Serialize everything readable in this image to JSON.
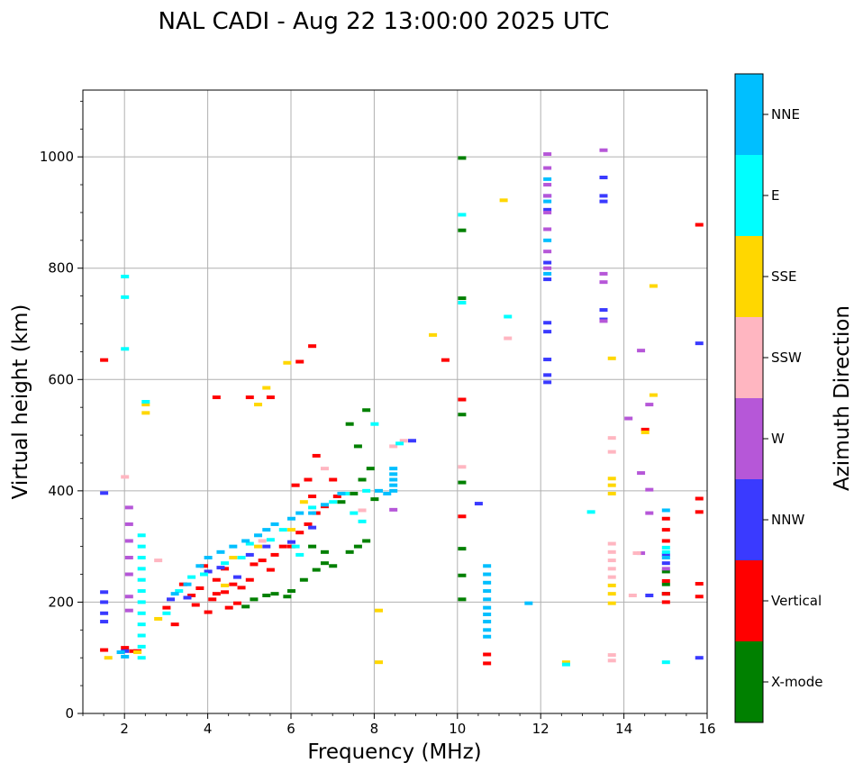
{
  "chart_data": {
    "type": "scatter",
    "title": "NAL CADI - Aug 22 13:00:00 2025 UTC",
    "xlabel": "Frequency (MHz)",
    "ylabel": "Virtual height (km)",
    "xlim": [
      1,
      16
    ],
    "ylim": [
      0,
      1120
    ],
    "xticks": [
      2,
      4,
      6,
      8,
      10,
      12,
      14,
      16
    ],
    "yticks": [
      0,
      200,
      400,
      600,
      800,
      1000
    ],
    "grid": true,
    "colorbar": {
      "label": "Azimuth Direction",
      "categories": [
        {
          "name": "X-mode",
          "color": "#008000"
        },
        {
          "name": "Vertical",
          "color": "#ff0000"
        },
        {
          "name": "NNW",
          "color": "#3a3aff"
        },
        {
          "name": "W",
          "color": "#b657d8"
        },
        {
          "name": "SSW",
          "color": "#ffb6c1"
        },
        {
          "name": "SSE",
          "color": "#ffd700"
        },
        {
          "name": "E",
          "color": "#00ffff"
        },
        {
          "name": "NNE",
          "color": "#00bfff"
        }
      ]
    },
    "series": [
      {
        "name": "X-mode",
        "points": [
          [
            4.9,
            192
          ],
          [
            5.1,
            205
          ],
          [
            5.4,
            212
          ],
          [
            5.6,
            215
          ],
          [
            5.9,
            210
          ],
          [
            6.0,
            220
          ],
          [
            6.3,
            240
          ],
          [
            6.6,
            258
          ],
          [
            6.8,
            270
          ],
          [
            7.0,
            265
          ],
          [
            7.4,
            290
          ],
          [
            7.6,
            300
          ],
          [
            7.8,
            310
          ],
          [
            7.2,
            380
          ],
          [
            7.5,
            395
          ],
          [
            7.7,
            420
          ],
          [
            7.9,
            440
          ],
          [
            7.6,
            480
          ],
          [
            7.4,
            520
          ],
          [
            7.8,
            545
          ],
          [
            8.0,
            385
          ],
          [
            10.1,
            205
          ],
          [
            10.1,
            248
          ],
          [
            10.1,
            296
          ],
          [
            10.1,
            415
          ],
          [
            10.1,
            537
          ],
          [
            10.1,
            746
          ],
          [
            10.1,
            868
          ],
          [
            10.1,
            998
          ],
          [
            15.0,
            215
          ],
          [
            15.0,
            232
          ],
          [
            15.0,
            255
          ],
          [
            6.8,
            290
          ],
          [
            6.5,
            300
          ]
        ]
      },
      {
        "name": "Vertical",
        "points": [
          [
            1.5,
            635
          ],
          [
            1.5,
            114
          ],
          [
            2.0,
            118
          ],
          [
            2.2,
            112
          ],
          [
            3.0,
            190
          ],
          [
            3.2,
            160
          ],
          [
            3.4,
            232
          ],
          [
            3.6,
            212
          ],
          [
            3.7,
            195
          ],
          [
            3.8,
            225
          ],
          [
            4.0,
            182
          ],
          [
            4.1,
            205
          ],
          [
            4.2,
            215
          ],
          [
            4.2,
            240
          ],
          [
            4.4,
            218
          ],
          [
            4.5,
            190
          ],
          [
            4.6,
            232
          ],
          [
            4.8,
            226
          ],
          [
            4.7,
            198
          ],
          [
            5.0,
            240
          ],
          [
            5.1,
            268
          ],
          [
            5.3,
            275
          ],
          [
            5.5,
            258
          ],
          [
            5.6,
            285
          ],
          [
            5.8,
            300
          ],
          [
            6.0,
            300
          ],
          [
            6.2,
            325
          ],
          [
            6.4,
            340
          ],
          [
            6.6,
            360
          ],
          [
            6.8,
            372
          ],
          [
            6.5,
            390
          ],
          [
            7.1,
            390
          ],
          [
            7.0,
            420
          ],
          [
            6.1,
            410
          ],
          [
            6.4,
            420
          ],
          [
            6.6,
            463
          ],
          [
            6.2,
            632
          ],
          [
            6.5,
            660
          ],
          [
            5.0,
            568
          ],
          [
            4.2,
            568
          ],
          [
            5.5,
            568
          ],
          [
            9.7,
            635
          ],
          [
            10.1,
            564
          ],
          [
            10.1,
            354
          ],
          [
            10.7,
            106
          ],
          [
            10.7,
            90
          ],
          [
            14.5,
            510
          ],
          [
            15.0,
            350
          ],
          [
            15.0,
            330
          ],
          [
            15.0,
            310
          ],
          [
            15.0,
            238
          ],
          [
            15.0,
            215
          ],
          [
            15.0,
            200
          ],
          [
            15.8,
            878
          ],
          [
            15.8,
            386
          ],
          [
            15.8,
            362
          ],
          [
            15.8,
            233
          ],
          [
            15.8,
            210
          ],
          [
            2.3,
            112
          ],
          [
            3.9,
            265
          ],
          [
            4.4,
            260
          ]
        ]
      },
      {
        "name": "NNW",
        "points": [
          [
            1.5,
            396
          ],
          [
            1.5,
            218
          ],
          [
            1.5,
            200
          ],
          [
            1.5,
            180
          ],
          [
            1.5,
            165
          ],
          [
            2.0,
            112
          ],
          [
            3.1,
            205
          ],
          [
            3.5,
            208
          ],
          [
            4.0,
            255
          ],
          [
            4.3,
            262
          ],
          [
            4.7,
            245
          ],
          [
            5.0,
            285
          ],
          [
            5.4,
            300
          ],
          [
            6.0,
            308
          ],
          [
            6.5,
            334
          ],
          [
            8.9,
            490
          ],
          [
            10.5,
            377
          ],
          [
            12.15,
            930
          ],
          [
            12.15,
            905
          ],
          [
            12.15,
            810
          ],
          [
            12.15,
            780
          ],
          [
            12.15,
            702
          ],
          [
            12.15,
            686
          ],
          [
            12.15,
            636
          ],
          [
            12.15,
            608
          ],
          [
            12.15,
            595
          ],
          [
            13.5,
            963
          ],
          [
            13.5,
            930
          ],
          [
            13.5,
            920
          ],
          [
            13.5,
            725
          ],
          [
            13.5,
            708
          ],
          [
            15.0,
            285
          ],
          [
            15.0,
            270
          ],
          [
            15.8,
            665
          ],
          [
            15.8,
            100
          ],
          [
            14.6,
            212
          ]
        ]
      },
      {
        "name": "W",
        "points": [
          [
            2.1,
            370
          ],
          [
            2.1,
            340
          ],
          [
            2.1,
            310
          ],
          [
            2.1,
            280
          ],
          [
            2.1,
            250
          ],
          [
            2.1,
            210
          ],
          [
            2.1,
            185
          ],
          [
            8.45,
            366
          ],
          [
            12.15,
            1005
          ],
          [
            12.15,
            980
          ],
          [
            12.15,
            950
          ],
          [
            12.15,
            930
          ],
          [
            12.15,
            900
          ],
          [
            12.15,
            870
          ],
          [
            12.15,
            830
          ],
          [
            12.15,
            800
          ],
          [
            13.5,
            1012
          ],
          [
            13.5,
            790
          ],
          [
            13.5,
            775
          ],
          [
            13.5,
            705
          ],
          [
            14.1,
            530
          ],
          [
            14.4,
            652
          ],
          [
            14.4,
            432
          ],
          [
            14.6,
            555
          ],
          [
            14.6,
            402
          ],
          [
            14.6,
            360
          ],
          [
            14.4,
            288
          ],
          [
            15.0,
            260
          ]
        ]
      },
      {
        "name": "SSW",
        "points": [
          [
            2.0,
            425
          ],
          [
            2.8,
            275
          ],
          [
            6.8,
            440
          ],
          [
            8.45,
            480
          ],
          [
            8.7,
            490
          ],
          [
            10.1,
            443
          ],
          [
            11.2,
            674
          ],
          [
            13.7,
            305
          ],
          [
            13.7,
            290
          ],
          [
            13.7,
            275
          ],
          [
            13.7,
            260
          ],
          [
            13.7,
            245
          ],
          [
            13.7,
            470
          ],
          [
            13.7,
            495
          ],
          [
            13.7,
            105
          ],
          [
            13.7,
            95
          ],
          [
            14.2,
            212
          ],
          [
            14.3,
            288
          ],
          [
            7.7,
            365
          ],
          [
            5.3,
            310
          ]
        ]
      },
      {
        "name": "SSE",
        "points": [
          [
            1.6,
            100
          ],
          [
            2.3,
            110
          ],
          [
            2.5,
            540
          ],
          [
            2.5,
            555
          ],
          [
            2.8,
            170
          ],
          [
            5.2,
            555
          ],
          [
            5.4,
            585
          ],
          [
            5.9,
            630
          ],
          [
            9.4,
            680
          ],
          [
            11.1,
            922
          ],
          [
            8.1,
            185
          ],
          [
            8.1,
            92
          ],
          [
            12.6,
            92
          ],
          [
            13.7,
            230
          ],
          [
            13.7,
            215
          ],
          [
            13.7,
            198
          ],
          [
            13.7,
            410
          ],
          [
            13.7,
            422
          ],
          [
            13.7,
            395
          ],
          [
            13.7,
            638
          ],
          [
            14.7,
            768
          ],
          [
            14.7,
            572
          ],
          [
            14.5,
            505
          ],
          [
            4.4,
            230
          ],
          [
            4.6,
            280
          ],
          [
            5.2,
            300
          ],
          [
            6.0,
            330
          ],
          [
            6.3,
            380
          ]
        ]
      },
      {
        "name": "E",
        "points": [
          [
            2.4,
            320
          ],
          [
            2.4,
            300
          ],
          [
            2.4,
            280
          ],
          [
            2.4,
            260
          ],
          [
            2.4,
            240
          ],
          [
            2.4,
            220
          ],
          [
            2.4,
            200
          ],
          [
            2.4,
            180
          ],
          [
            2.4,
            160
          ],
          [
            2.4,
            140
          ],
          [
            2.4,
            120
          ],
          [
            2.4,
            100
          ],
          [
            2.0,
            785
          ],
          [
            2.0,
            748
          ],
          [
            2.0,
            655
          ],
          [
            2.5,
            560
          ],
          [
            3.0,
            180
          ],
          [
            3.3,
            220
          ],
          [
            3.6,
            245
          ],
          [
            3.9,
            250
          ],
          [
            4.4,
            270
          ],
          [
            4.8,
            280
          ],
          [
            5.0,
            305
          ],
          [
            5.5,
            312
          ],
          [
            5.8,
            330
          ],
          [
            6.1,
            300
          ],
          [
            6.2,
            285
          ],
          [
            6.5,
            370
          ],
          [
            7.0,
            380
          ],
          [
            7.3,
            395
          ],
          [
            7.5,
            360
          ],
          [
            7.7,
            345
          ],
          [
            7.8,
            400
          ],
          [
            8.0,
            520
          ],
          [
            10.1,
            896
          ],
          [
            10.1,
            738
          ],
          [
            11.2,
            713
          ],
          [
            12.6,
            88
          ],
          [
            13.2,
            362
          ],
          [
            15.0,
            298
          ],
          [
            15.0,
            290
          ],
          [
            15.0,
            92
          ],
          [
            8.6,
            485
          ]
        ]
      },
      {
        "name": "NNE",
        "points": [
          [
            1.9,
            110
          ],
          [
            2.0,
            102
          ],
          [
            3.2,
            215
          ],
          [
            3.5,
            232
          ],
          [
            3.8,
            265
          ],
          [
            4.0,
            280
          ],
          [
            4.3,
            290
          ],
          [
            4.6,
            300
          ],
          [
            4.9,
            310
          ],
          [
            5.2,
            320
          ],
          [
            5.4,
            330
          ],
          [
            5.6,
            340
          ],
          [
            6.0,
            350
          ],
          [
            6.2,
            360
          ],
          [
            6.5,
            360
          ],
          [
            6.8,
            375
          ],
          [
            7.2,
            395
          ],
          [
            8.1,
            400
          ],
          [
            8.3,
            395
          ],
          [
            8.45,
            440
          ],
          [
            8.45,
            430
          ],
          [
            8.45,
            420
          ],
          [
            8.45,
            410
          ],
          [
            8.45,
            400
          ],
          [
            10.7,
            265
          ],
          [
            10.7,
            250
          ],
          [
            10.7,
            235
          ],
          [
            10.7,
            220
          ],
          [
            10.7,
            205
          ],
          [
            10.7,
            190
          ],
          [
            10.7,
            178
          ],
          [
            10.7,
            165
          ],
          [
            10.7,
            150
          ],
          [
            10.7,
            138
          ],
          [
            11.7,
            198
          ],
          [
            12.15,
            960
          ],
          [
            12.15,
            920
          ],
          [
            12.15,
            850
          ],
          [
            12.15,
            790
          ],
          [
            15.0,
            365
          ],
          [
            15.0,
            280
          ]
        ]
      }
    ]
  }
}
